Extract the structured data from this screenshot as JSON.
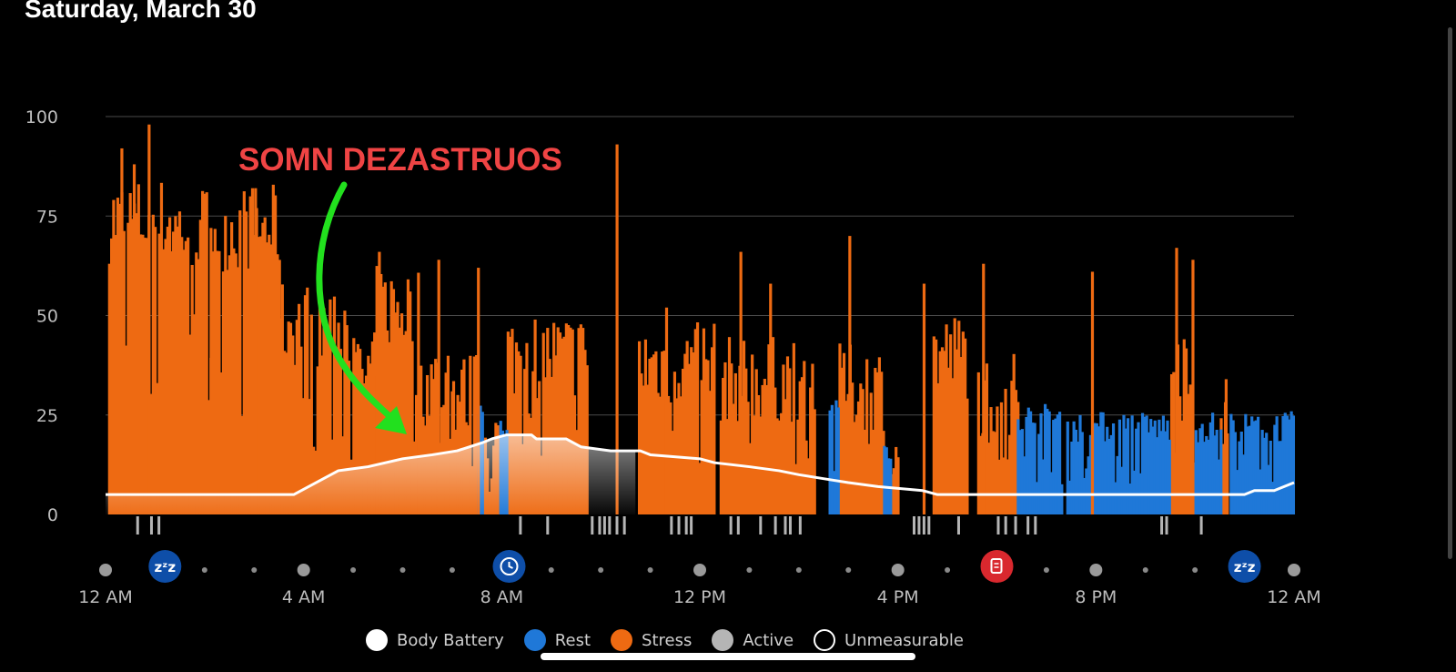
{
  "header": {
    "date": "Saturday, March 30"
  },
  "annotation": {
    "text": "SOMN DEZASTRUOS",
    "color": "#ef4444",
    "arrow_color": "#22e01e"
  },
  "chart_data": {
    "type": "bar",
    "y_ticks": [
      "100",
      "75",
      "50",
      "25",
      "0"
    ],
    "y_tick_values": [
      100,
      75,
      50,
      25,
      0
    ],
    "ylim": [
      0,
      100
    ],
    "x_tick_labels": [
      "12 AM",
      "4 AM",
      "8 AM",
      "12 PM",
      "4 PM",
      "8 PM",
      "12 AM"
    ],
    "x_range_hours": [
      0,
      24
    ],
    "grid": true,
    "legend_position": "bottom",
    "colors": {
      "stress": "#ee6a12",
      "rest": "#1f78d8",
      "active": "#b5b5b5",
      "body_battery": "#ffffff",
      "grid": "#4a4a4a",
      "axis_text": "#bdbdbd"
    },
    "series": [
      {
        "name": "Stress",
        "segments": [
          {
            "start": 0.05,
            "end": 1.3,
            "level": 74
          },
          {
            "start": 1.3,
            "end": 3.5,
            "level": 72
          },
          {
            "start": 3.5,
            "end": 4.9,
            "level": 48
          },
          {
            "start": 4.9,
            "end": 5.45,
            "level": 35
          },
          {
            "start": 5.45,
            "end": 6.3,
            "level": 52
          },
          {
            "start": 6.3,
            "end": 7.0,
            "level": 33
          },
          {
            "start": 7.0,
            "end": 7.5,
            "level": 30
          },
          {
            "start": 7.6,
            "end": 7.95,
            "level": 18
          },
          {
            "start": 8.1,
            "end": 9.7,
            "level": 40
          },
          {
            "start": 10.75,
            "end": 12.3,
            "level": 38
          },
          {
            "start": 12.4,
            "end": 14.3,
            "level": 34
          },
          {
            "start": 14.8,
            "end": 15.7,
            "level": 32
          },
          {
            "start": 15.85,
            "end": 16.0,
            "level": 20
          },
          {
            "start": 16.7,
            "end": 17.4,
            "level": 40
          },
          {
            "start": 17.6,
            "end": 18.4,
            "level": 30
          },
          {
            "start": 21.5,
            "end": 21.9,
            "level": 40
          },
          {
            "start": 22.5,
            "end": 22.65,
            "level": 28
          }
        ],
        "spikes": [
          {
            "h": 0.3,
            "v": 92
          },
          {
            "h": 0.55,
            "v": 88
          },
          {
            "h": 0.85,
            "v": 98
          },
          {
            "h": 2.1,
            "v": 72
          },
          {
            "h": 3.0,
            "v": 82
          },
          {
            "h": 5.5,
            "v": 66
          },
          {
            "h": 6.7,
            "v": 64
          },
          {
            "h": 7.5,
            "v": 62
          },
          {
            "h": 10.3,
            "v": 93
          },
          {
            "h": 11.3,
            "v": 52
          },
          {
            "h": 12.8,
            "v": 66
          },
          {
            "h": 13.4,
            "v": 58
          },
          {
            "h": 15.0,
            "v": 70
          },
          {
            "h": 16.5,
            "v": 58
          },
          {
            "h": 17.7,
            "v": 63
          },
          {
            "h": 19.9,
            "v": 61
          },
          {
            "h": 21.6,
            "v": 67
          },
          {
            "h": 21.93,
            "v": 64
          },
          {
            "h": 22.6,
            "v": 34
          }
        ]
      },
      {
        "name": "Rest",
        "segments": [
          {
            "start": 7.5,
            "end": 7.6,
            "level": 24
          },
          {
            "start": 7.95,
            "end": 8.1,
            "level": 22
          },
          {
            "start": 14.6,
            "end": 14.8,
            "level": 25
          },
          {
            "start": 15.7,
            "end": 15.85,
            "level": 18
          },
          {
            "start": 18.4,
            "end": 19.3,
            "level": 24
          },
          {
            "start": 19.4,
            "end": 21.5,
            "level": 22
          },
          {
            "start": 21.95,
            "end": 22.5,
            "level": 22
          },
          {
            "start": 22.7,
            "end": 24.0,
            "level": 22
          }
        ]
      },
      {
        "name": "Active",
        "ticks": [
          0.62,
          0.9,
          1.05,
          8.35,
          8.9,
          9.8,
          9.95,
          10.05,
          10.15,
          10.3,
          10.45,
          11.4,
          11.55,
          11.7,
          11.8,
          12.6,
          12.75,
          13.2,
          13.5,
          13.7,
          13.8,
          14.0,
          16.3,
          16.4,
          16.5,
          16.6,
          17.2,
          18.0,
          18.15,
          18.35,
          18.6,
          18.75,
          21.3,
          21.4,
          22.1
        ]
      },
      {
        "name": "Body Battery",
        "points": [
          [
            0,
            5
          ],
          [
            3.8,
            5
          ],
          [
            4.1,
            7
          ],
          [
            4.4,
            9
          ],
          [
            4.7,
            11
          ],
          [
            5.3,
            12
          ],
          [
            6.0,
            14
          ],
          [
            6.6,
            15
          ],
          [
            7.1,
            16
          ],
          [
            7.6,
            18
          ],
          [
            7.8,
            19
          ],
          [
            8.1,
            20
          ],
          [
            8.6,
            20
          ],
          [
            8.7,
            19
          ],
          [
            9.3,
            19
          ],
          [
            9.6,
            17
          ],
          [
            10.2,
            16
          ],
          [
            10.8,
            16
          ],
          [
            11.0,
            15
          ],
          [
            12.0,
            14
          ],
          [
            12.3,
            13
          ],
          [
            13.0,
            12
          ],
          [
            13.6,
            11
          ],
          [
            14.0,
            10
          ],
          [
            14.5,
            9
          ],
          [
            15.0,
            8
          ],
          [
            15.6,
            7
          ],
          [
            16.5,
            6
          ],
          [
            16.8,
            5
          ],
          [
            23.0,
            5
          ],
          [
            23.2,
            6
          ],
          [
            23.6,
            6
          ],
          [
            23.8,
            7
          ],
          [
            24.0,
            8
          ]
        ]
      }
    ],
    "sleep_window_hours": [
      0,
      10.7
    ],
    "event_markers": [
      {
        "name": "sleep-icon",
        "glyph": "zzz",
        "hour": 1.2,
        "color": "#0e4ea8"
      },
      {
        "name": "clock-icon",
        "glyph": "clock",
        "hour": 8.15,
        "color": "#0e4ea8"
      },
      {
        "name": "log-icon",
        "glyph": "doc",
        "hour": 18.0,
        "color": "#d9282e"
      },
      {
        "name": "sleep-icon",
        "glyph": "zzz",
        "hour": 23.0,
        "color": "#0e4ea8"
      }
    ],
    "legend": [
      {
        "label": "Body Battery",
        "swatch": "#ffffff",
        "style": "fill"
      },
      {
        "label": "Rest",
        "swatch": "#1f78d8",
        "style": "fill"
      },
      {
        "label": "Stress",
        "swatch": "#ee6a12",
        "style": "fill"
      },
      {
        "label": "Active",
        "swatch": "#b5b5b5",
        "style": "fill"
      },
      {
        "label": "Unmeasurable",
        "swatch": "#ffffff",
        "style": "outline"
      }
    ]
  }
}
